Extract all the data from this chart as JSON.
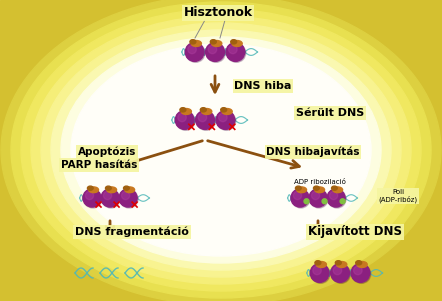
{
  "bg_color": "#f5e060",
  "bg_outer": "#e8d830",
  "bg_light": "#fffff0",
  "arrow_color": "#8B5010",
  "label_bg": "#f5f5a0",
  "labels": {
    "hisztonok": "Hisztonok",
    "dns_hiba": "DNS hiba",
    "serult_dns": "Sérült DNS",
    "apoptosis": "Apoptózis",
    "parp_hasitas": "PARP hasítás",
    "dns_hibajavitas": "DNS hibajavítás",
    "adp_ribozilacio": "ADP ribozilació",
    "poli_adp": "Poli\n(ADP-ribóz)",
    "dns_fragmentacio": "DNS fragmentáció",
    "kijavitott_dns": "Kijavított DNS"
  },
  "cell_color": "#8b2080",
  "cell_highlight": "#b040a0",
  "dna_color": "#50b8b8",
  "parp_color": "#c87820",
  "parp_dark": "#a06010",
  "red_x": "#dd0000",
  "green_dot": "#80c040"
}
